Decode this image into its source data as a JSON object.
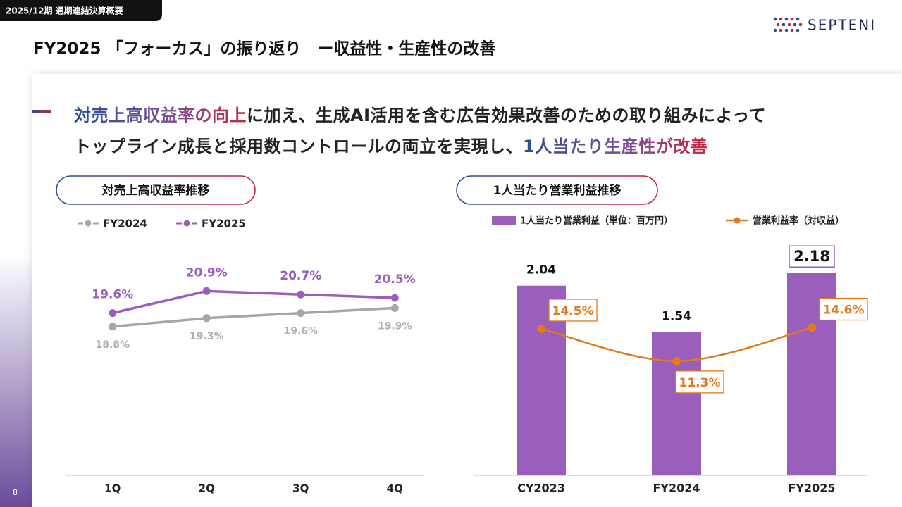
{
  "header": {
    "tag": "2025/12期 通期連結決算概要",
    "logo": "SEPTENI",
    "title": "FY2025 「フォーカス」の振り返り　ー収益性・生産性の改善",
    "page": "8"
  },
  "headline": {
    "lines": [
      [
        {
          "text": "対売上高収益率の向上",
          "emphasis": true
        },
        {
          "text": "に加え、生成AI活用を含む広告効果改善のための取り組みによって",
          "emphasis": false
        }
      ],
      [
        {
          "text": "トップライン成長と採用数コントロールの両立を実現し、",
          "emphasis": false
        },
        {
          "text": "1人当たり生産性が改善",
          "emphasis": true
        }
      ]
    ]
  },
  "chart_data": [
    {
      "type": "line",
      "title": "対売上高収益率推移",
      "categories": [
        "1Q",
        "2Q",
        "3Q",
        "4Q"
      ],
      "series": [
        {
          "name": "FY2024",
          "color": "#a6a6a6",
          "values": [
            18.8,
            19.3,
            19.6,
            19.9
          ],
          "value_labels": [
            "18.8%",
            "19.3%",
            "19.6%",
            "19.9%"
          ]
        },
        {
          "name": "FY2025",
          "color": "#9a5fbd",
          "values": [
            19.6,
            20.9,
            20.7,
            20.5
          ],
          "value_labels": [
            "19.6%",
            "20.9%",
            "20.7%",
            "20.5%"
          ]
        }
      ],
      "ylim": [
        10,
        22
      ],
      "legend": "top-left"
    },
    {
      "type": "bar",
      "title": "1人当たり営業利益推移",
      "categories": [
        "CY2023",
        "FY2024",
        "FY2025"
      ],
      "series": [
        {
          "name": "1人当たり営業利益（単位：百万円）",
          "color": "#9a5fbd",
          "values": [
            2.04,
            1.54,
            2.18
          ]
        },
        {
          "name": "営業利益率（対収益）",
          "color": "#e07a1c",
          "type": "line",
          "axis": "y2",
          "values": [
            14.5,
            11.3,
            14.6
          ],
          "value_labels": [
            "14.5%",
            "11.3%",
            "14.6%"
          ]
        }
      ],
      "ylim": [
        0,
        2.5
      ],
      "y2lim": [
        0,
        23
      ],
      "legend": "top"
    }
  ]
}
